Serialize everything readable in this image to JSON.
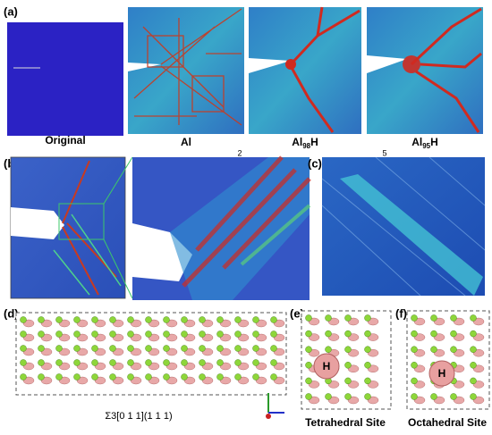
{
  "panels": {
    "a": {
      "label": "(a)",
      "captions": {
        "original": "Original",
        "al": "Al",
        "al98h": {
          "base": "Al",
          "sub": "98",
          "tail": "H"
        },
        "al95h": {
          "base": "Al",
          "sub": "95",
          "tail": "H"
        }
      }
    },
    "b": {
      "label": "(b)",
      "marker": "2"
    },
    "c": {
      "label": "(c)",
      "marker": "5"
    },
    "d": {
      "label": "(d)",
      "boundary": "Σ3[0 1 1](1 1 1)"
    },
    "e": {
      "label": "(e)",
      "site": "H",
      "caption": "Tetrahedral Site"
    },
    "f": {
      "label": "(f)",
      "site": "H",
      "caption": "Octahedral Site"
    }
  }
}
